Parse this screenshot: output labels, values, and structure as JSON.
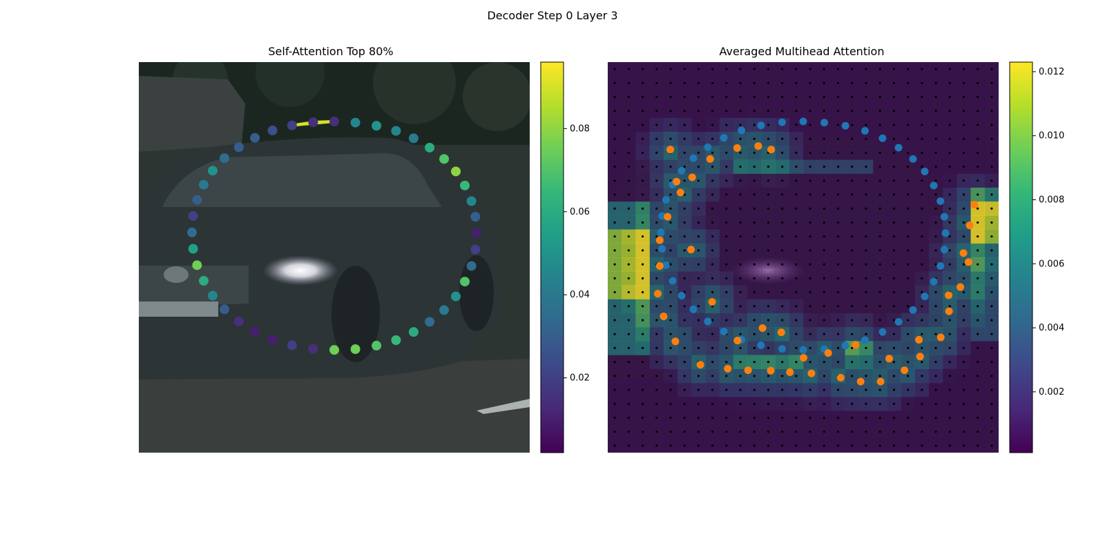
{
  "figure_title": "Decoder Step 0 Layer 3",
  "colors": {
    "viridis": [
      "#440154",
      "#482878",
      "#3e4989",
      "#31688e",
      "#26828e",
      "#1f9e89",
      "#35b779",
      "#6ece58",
      "#b5de2b",
      "#fde725"
    ],
    "query_points": "#1f77b4",
    "key_points": "#ff7f0e",
    "grid_dots": "#000000"
  },
  "chart_data": [
    {
      "type": "scatter",
      "title": "Self-Attention Top 80%",
      "background": "photo of a dark station wagon car",
      "colorbar": {
        "ticks": [
          0.02,
          0.04,
          0.06,
          0.08
        ],
        "range": [
          0.002,
          0.096
        ]
      },
      "points_normalized": {
        "x": [
          0.5,
          0.554,
          0.608,
          0.658,
          0.703,
          0.744,
          0.781,
          0.811,
          0.834,
          0.851,
          0.861,
          0.864,
          0.861,
          0.851,
          0.834,
          0.811,
          0.781,
          0.744,
          0.703,
          0.658,
          0.608,
          0.554,
          0.5,
          0.446,
          0.392,
          0.342,
          0.297,
          0.256,
          0.219,
          0.189,
          0.166,
          0.149,
          0.139,
          0.136,
          0.139,
          0.149,
          0.166,
          0.189,
          0.219,
          0.256,
          0.297,
          0.342,
          0.392,
          0.446
        ],
        "y": [
          0.152,
          0.155,
          0.163,
          0.176,
          0.195,
          0.219,
          0.248,
          0.28,
          0.316,
          0.356,
          0.396,
          0.438,
          0.48,
          0.522,
          0.562,
          0.6,
          0.635,
          0.665,
          0.691,
          0.712,
          0.726,
          0.735,
          0.737,
          0.734,
          0.725,
          0.711,
          0.69,
          0.664,
          0.633,
          0.598,
          0.56,
          0.52,
          0.478,
          0.436,
          0.394,
          0.353,
          0.314,
          0.278,
          0.246,
          0.218,
          0.194,
          0.175,
          0.162,
          0.154
        ],
        "attention": [
          0.015,
          0.045,
          0.05,
          0.045,
          0.04,
          0.06,
          0.07,
          0.08,
          0.065,
          0.045,
          0.03,
          0.01,
          0.02,
          0.035,
          0.07,
          0.05,
          0.04,
          0.035,
          0.06,
          0.065,
          0.07,
          0.075,
          0.075,
          0.015,
          0.02,
          0.01,
          0.01,
          0.015,
          0.03,
          0.045,
          0.06,
          0.075,
          0.055,
          0.035,
          0.02,
          0.03,
          0.04,
          0.05,
          0.035,
          0.03,
          0.03,
          0.025,
          0.02,
          0.015
        ]
      },
      "highlight_links": [
        [
          0,
          42
        ],
        [
          42,
          43
        ],
        [
          43,
          44
        ],
        [
          0,
          43
        ]
      ]
    },
    {
      "type": "heatmap",
      "title": "Averaged Multihead Attention",
      "background": "darkened photo of the same car",
      "colorbar": {
        "ticks": [
          0.002,
          0.004,
          0.006,
          0.008,
          0.01,
          0.012
        ],
        "range": [
          0.0001,
          0.0123
        ]
      },
      "grid": "28x28 sampling dots",
      "series": [
        {
          "color": "#1f77b4",
          "x": [
            0.5,
            0.554,
            0.608,
            0.658,
            0.703,
            0.744,
            0.781,
            0.811,
            0.834,
            0.851,
            0.861,
            0.864,
            0.861,
            0.851,
            0.834,
            0.811,
            0.781,
            0.744,
            0.703,
            0.658,
            0.608,
            0.554,
            0.5,
            0.446,
            0.392,
            0.342,
            0.297,
            0.256,
            0.219,
            0.189,
            0.166,
            0.149,
            0.139,
            0.136,
            0.139,
            0.149,
            0.166,
            0.189,
            0.219,
            0.256,
            0.297,
            0.342,
            0.392,
            0.446
          ],
          "y": [
            0.152,
            0.155,
            0.163,
            0.176,
            0.195,
            0.219,
            0.248,
            0.28,
            0.316,
            0.356,
            0.396,
            0.438,
            0.48,
            0.522,
            0.562,
            0.6,
            0.635,
            0.665,
            0.691,
            0.712,
            0.726,
            0.735,
            0.737,
            0.734,
            0.725,
            0.711,
            0.69,
            0.664,
            0.633,
            0.598,
            0.56,
            0.52,
            0.478,
            0.436,
            0.394,
            0.353,
            0.314,
            0.278,
            0.246,
            0.218,
            0.194,
            0.175,
            0.162,
            0.154
          ]
        },
        {
          "color": "#ff7f0e",
          "x": [
            0.16,
            0.176,
            0.213,
            0.267,
            0.332,
            0.396,
            0.444,
            0.501,
            0.564,
            0.634,
            0.72,
            0.796,
            0.872,
            0.91,
            0.938,
            0.926,
            0.923,
            0.902,
            0.873,
            0.852,
            0.799,
            0.759,
            0.698,
            0.647,
            0.596,
            0.521,
            0.466,
            0.417,
            0.359,
            0.307,
            0.237,
            0.173,
            0.143,
            0.128,
            0.133,
            0.133,
            0.153,
            0.186,
            0.216,
            0.262,
            0.331,
            0.385,
            0.418
          ],
          "y": [
            0.224,
            0.306,
            0.48,
            0.614,
            0.713,
            0.681,
            0.692,
            0.757,
            0.745,
            0.724,
            0.759,
            0.711,
            0.597,
            0.489,
            0.365,
            0.418,
            0.512,
            0.576,
            0.638,
            0.705,
            0.754,
            0.789,
            0.818,
            0.818,
            0.808,
            0.797,
            0.794,
            0.79,
            0.789,
            0.785,
            0.775,
            0.715,
            0.651,
            0.593,
            0.522,
            0.456,
            0.396,
            0.334,
            0.295,
            0.248,
            0.22,
            0.215,
            0.224
          ]
        }
      ]
    }
  ]
}
